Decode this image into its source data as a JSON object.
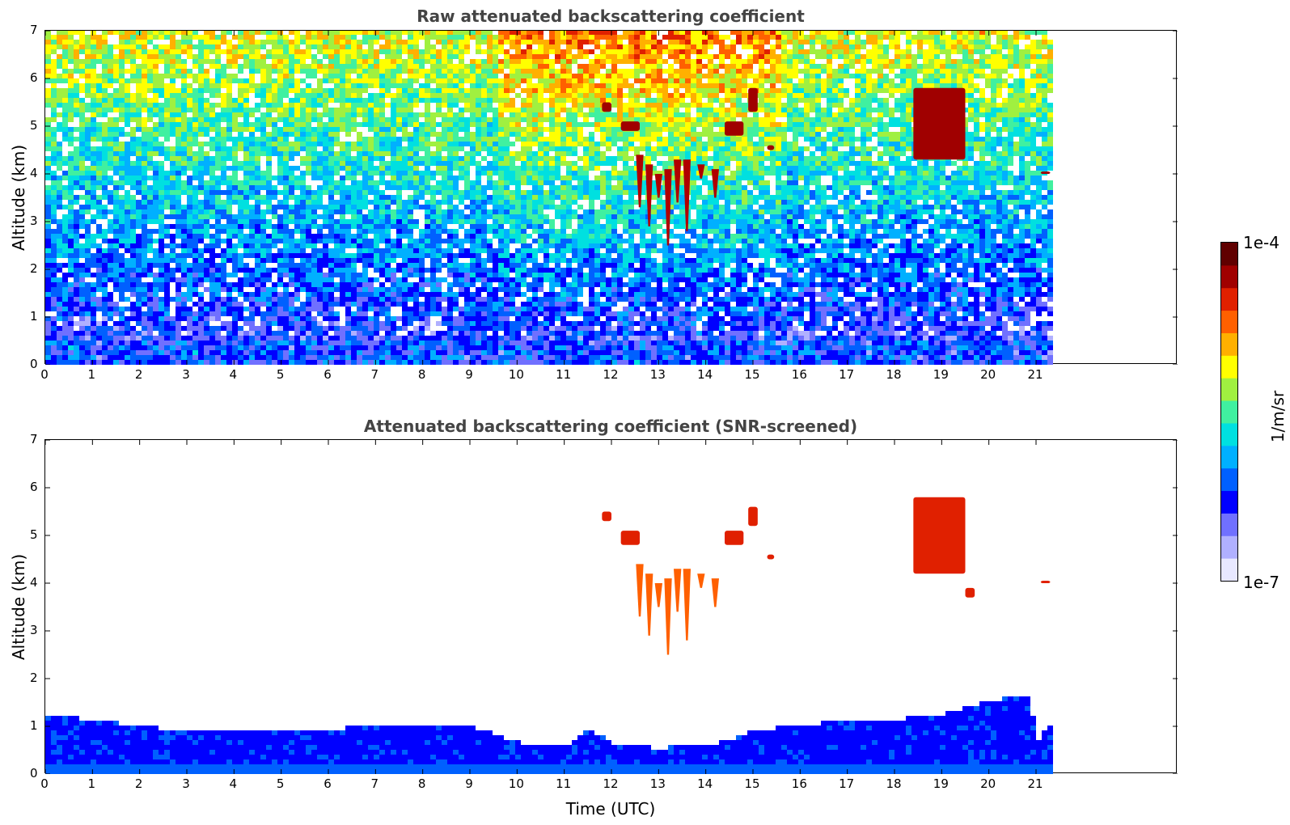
{
  "colors": {
    "title": "#444444",
    "colormap": [
      "#e8e8ff",
      "#b0b0ff",
      "#7070ff",
      "#0000ff",
      "#0060ff",
      "#00b0ff",
      "#00e0e0",
      "#40f0a0",
      "#a0f040",
      "#ffff00",
      "#ffb000",
      "#ff6000",
      "#e02000",
      "#a00000",
      "#600000"
    ]
  },
  "chart_data": [
    {
      "type": "heatmap",
      "title": "Raw attenuated backscattering coefficient",
      "xlabel": "",
      "ylabel": "Altitude (km)",
      "xlim": [
        0,
        24
      ],
      "ylim": [
        0,
        7
      ],
      "xticks": [
        "0",
        "1",
        "2",
        "3",
        "4",
        "5",
        "6",
        "7",
        "8",
        "9",
        "10",
        "11",
        "12",
        "13",
        "14",
        "15",
        "16",
        "17",
        "18",
        "19",
        "20",
        "21"
      ],
      "yticks": [
        "0",
        "1",
        "2",
        "3",
        "4",
        "5",
        "6",
        "7"
      ],
      "data_extent_hours": 21.3,
      "features": [
        {
          "kind": "boundary_layer",
          "top_km": 0.5
        },
        {
          "kind": "cloud",
          "time_range": [
            11.8,
            12.0
          ],
          "alt_range_km": [
            5.3,
            5.5
          ]
        },
        {
          "kind": "cloud",
          "time_range": [
            12.2,
            12.6
          ],
          "alt_range_km": [
            4.9,
            5.1
          ]
        },
        {
          "kind": "cloud_fallstreaks",
          "time_range": [
            12.6,
            14.3
          ],
          "alt_range_km": [
            2.5,
            4.6
          ]
        },
        {
          "kind": "cloud",
          "time_range": [
            14.4,
            14.8
          ],
          "alt_range_km": [
            4.8,
            5.1
          ]
        },
        {
          "kind": "cloud",
          "time_range": [
            14.9,
            15.1
          ],
          "alt_range_km": [
            5.3,
            5.8
          ]
        },
        {
          "kind": "cloud",
          "time_range": [
            15.3,
            15.45
          ],
          "alt_range_km": [
            4.5,
            4.6
          ]
        },
        {
          "kind": "cloud",
          "time_range": [
            18.4,
            19.5
          ],
          "alt_range_km": [
            4.3,
            5.8
          ]
        },
        {
          "kind": "cloud",
          "time_range": [
            21.1,
            21.3
          ],
          "alt_range_km": [
            4.0,
            4.05
          ]
        }
      ]
    },
    {
      "type": "heatmap",
      "title": "Attenuated backscattering coefficient (SNR-screened)",
      "xlabel": "Time (UTC)",
      "ylabel": "Altitude (km)",
      "xlim": [
        0,
        24
      ],
      "ylim": [
        0,
        7
      ],
      "xticks": [
        "0",
        "1",
        "2",
        "3",
        "4",
        "5",
        "6",
        "7",
        "8",
        "9",
        "10",
        "11",
        "12",
        "13",
        "14",
        "15",
        "16",
        "17",
        "18",
        "19",
        "20",
        "21"
      ],
      "yticks": [
        "0",
        "1",
        "2",
        "3",
        "4",
        "5",
        "6",
        "7"
      ],
      "data_extent_hours": 21.3,
      "boundary_layer_top_km": [
        [
          0,
          1.15
        ],
        [
          1,
          1.1
        ],
        [
          2,
          0.95
        ],
        [
          3,
          0.85
        ],
        [
          4,
          0.85
        ],
        [
          5,
          0.85
        ],
        [
          6,
          0.9
        ],
        [
          7,
          0.95
        ],
        [
          8,
          1.0
        ],
        [
          9,
          0.95
        ],
        [
          10,
          0.6
        ],
        [
          10.5,
          0.6
        ],
        [
          11,
          0.55
        ],
        [
          11.5,
          0.9
        ],
        [
          12,
          0.55
        ],
        [
          13,
          0.5
        ],
        [
          14,
          0.55
        ],
        [
          15,
          0.85
        ],
        [
          16,
          1.0
        ],
        [
          17,
          1.05
        ],
        [
          18,
          1.1
        ],
        [
          19,
          1.2
        ],
        [
          20,
          1.5
        ],
        [
          20.8,
          1.6
        ],
        [
          21,
          0.65
        ],
        [
          21.3,
          1.1
        ]
      ],
      "features": [
        {
          "kind": "cloud",
          "time_range": [
            11.8,
            12.0
          ],
          "alt_range_km": [
            5.3,
            5.5
          ]
        },
        {
          "kind": "cloud",
          "time_range": [
            12.2,
            12.6
          ],
          "alt_range_km": [
            4.8,
            5.1
          ]
        },
        {
          "kind": "cloud_fallstreaks",
          "time_range": [
            12.6,
            14.3
          ],
          "alt_range_km": [
            2.5,
            4.4
          ]
        },
        {
          "kind": "cloud",
          "time_range": [
            14.4,
            14.8
          ],
          "alt_range_km": [
            4.8,
            5.1
          ]
        },
        {
          "kind": "cloud",
          "time_range": [
            14.9,
            15.1
          ],
          "alt_range_km": [
            5.2,
            5.6
          ]
        },
        {
          "kind": "cloud",
          "time_range": [
            15.3,
            15.45
          ],
          "alt_range_km": [
            4.5,
            4.6
          ]
        },
        {
          "kind": "cloud",
          "time_range": [
            18.4,
            19.5
          ],
          "alt_range_km": [
            4.2,
            5.8
          ]
        },
        {
          "kind": "cloud",
          "time_range": [
            19.5,
            19.7
          ],
          "alt_range_km": [
            3.7,
            3.9
          ]
        },
        {
          "kind": "cloud",
          "time_range": [
            21.1,
            21.3
          ],
          "alt_range_km": [
            4.0,
            4.05
          ]
        }
      ]
    }
  ],
  "colorbar": {
    "max_label": "1e-4",
    "min_label": "1e-7",
    "unit_label": "1/m/sr"
  }
}
